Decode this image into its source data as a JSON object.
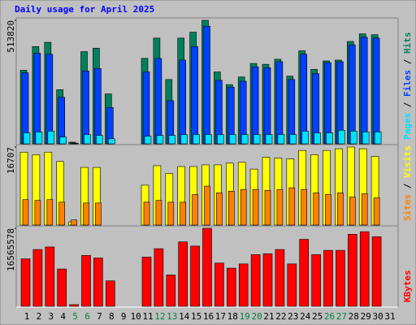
{
  "title": "Daily usage for April 2025",
  "legend_separator": "/",
  "chart_data": [
    {
      "type": "bar",
      "ylim": [
        0,
        513820
      ],
      "yticks": [
        513820
      ],
      "series": [
        {
          "name": "Hits",
          "color": "#00805c",
          "values": [
            306200,
            404700,
            422300,
            225200,
            7000,
            383600,
            397700,
            207600,
            0,
            0,
            355400,
            439900,
            267500,
            439900,
            464500,
            513820,
            299100,
            246400,
            278000,
            334300,
            330800,
            351900,
            281500,
            387100,
            309700,
            344900,
            348400,
            425800,
            457500,
            453900,
            0
          ]
        },
        {
          "name": "Files",
          "color": "#0040ff",
          "values": [
            295600,
            376600,
            373000,
            193600,
            3500,
            302700,
            313200,
            151300,
            0,
            0,
            299100,
            355400,
            179500,
            348400,
            404700,
            489200,
            264000,
            235800,
            260400,
            320300,
            316700,
            341400,
            267500,
            373000,
            292100,
            337800,
            341400,
            411800,
            443400,
            439900,
            0
          ]
        },
        {
          "name": "Pages",
          "color": "#00e0ff",
          "values": [
            45700,
            49300,
            52800,
            28200,
            1800,
            38700,
            35200,
            21100,
            0,
            0,
            31700,
            35200,
            35200,
            38700,
            38700,
            38700,
            38700,
            38700,
            38700,
            38700,
            38700,
            38700,
            38700,
            52800,
            45700,
            45700,
            56300,
            52800,
            49300,
            49300,
            0
          ]
        }
      ]
    },
    {
      "type": "bar",
      "ylim": [
        0,
        16707
      ],
      "yticks": [
        16707
      ],
      "series": [
        {
          "name": "Visits",
          "color": "#ffff00",
          "values": [
            15620,
            15070,
            15620,
            13620,
            700,
            12350,
            12350,
            0,
            0,
            0,
            8540,
            12710,
            11080,
            12530,
            12530,
            12890,
            12890,
            13260,
            13440,
            11990,
            14530,
            14350,
            14170,
            15980,
            15070,
            15980,
            16340,
            16707,
            16340,
            14710,
            0
          ]
        },
        {
          "name": "Sites",
          "color": "#ff8000",
          "values": [
            5450,
            5270,
            5450,
            4900,
            1100,
            4720,
            4720,
            0,
            0,
            0,
            4900,
            5270,
            4900,
            4900,
            6540,
            8350,
            6900,
            7260,
            7630,
            7630,
            7440,
            7630,
            7990,
            7630,
            6900,
            6540,
            6900,
            5990,
            6720,
            5810,
            0
          ]
        }
      ]
    },
    {
      "type": "bar",
      "ylim": [
        0,
        16565578
      ],
      "yticks": [
        16565578
      ],
      "categories": [
        "1",
        "2",
        "3",
        "4",
        "5",
        "6",
        "7",
        "8",
        "9",
        "10",
        "11",
        "12",
        "13",
        "14",
        "15",
        "16",
        "17",
        "18",
        "19",
        "20",
        "21",
        "22",
        "23",
        "24",
        "25",
        "26",
        "27",
        "28",
        "29",
        "30",
        "31"
      ],
      "weekend_days": [
        "5",
        "6",
        "12",
        "13",
        "19",
        "20",
        "26",
        "27"
      ],
      "weekend_color": "#008040",
      "series": [
        {
          "name": "KBytes",
          "color": "#ff0000",
          "values": [
            10083000,
            12064000,
            12604000,
            7923000,
            360000,
            10804000,
            10264000,
            5402000,
            0,
            0,
            10444000,
            12244000,
            6662000,
            13685000,
            12784000,
            16565578,
            9183000,
            8103000,
            9003000,
            10984000,
            11164000,
            12064000,
            9003000,
            14225000,
            10984000,
            11884000,
            11884000,
            15305000,
            15845000,
            14765000,
            0
          ]
        }
      ]
    }
  ]
}
